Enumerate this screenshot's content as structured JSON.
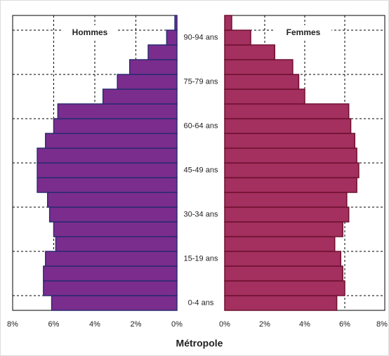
{
  "chart_data": {
    "type": "pyramid",
    "categories": [
      "0-4 ans",
      null,
      null,
      "15-19 ans",
      null,
      null,
      "30-34 ans",
      null,
      null,
      "45-49 ans",
      null,
      null,
      "60-64 ans",
      null,
      null,
      "75-79 ans",
      null,
      null,
      "90-94 ans",
      null
    ],
    "series": [
      {
        "name": "Hommes",
        "color": "#7b2d8e",
        "values": [
          6.1,
          6.5,
          6.5,
          6.4,
          5.9,
          6.0,
          6.2,
          6.3,
          6.8,
          6.8,
          6.8,
          6.4,
          6.0,
          5.8,
          3.6,
          2.9,
          2.3,
          1.4,
          0.5,
          0.1
        ]
      },
      {
        "name": "Femmes",
        "color": "#a3305f",
        "values": [
          5.6,
          6.0,
          5.9,
          5.8,
          5.5,
          5.9,
          6.2,
          6.1,
          6.6,
          6.7,
          6.6,
          6.5,
          6.3,
          6.2,
          4.0,
          3.7,
          3.4,
          2.5,
          1.3,
          0.35
        ]
      }
    ],
    "xlim": [
      0,
      8
    ],
    "xticks": [
      {
        "value": 0,
        "label": "0%"
      },
      {
        "value": 2,
        "label": "2%"
      },
      {
        "value": 4,
        "label": "4%"
      },
      {
        "value": 6,
        "label": "6%"
      },
      {
        "value": 8,
        "label": "8%"
      }
    ],
    "grid": true,
    "xlabel": "Métropole"
  }
}
